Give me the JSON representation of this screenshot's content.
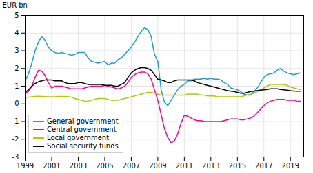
{
  "chart_data": {
    "type": "line",
    "ylabel": "EUR bn",
    "x": [
      1999.0,
      1999.25,
      1999.5,
      1999.75,
      2000.0,
      2000.25,
      2000.5,
      2000.75,
      2001.0,
      2001.25,
      2001.5,
      2001.75,
      2002.0,
      2002.25,
      2002.5,
      2002.75,
      2003.0,
      2003.25,
      2003.5,
      2003.75,
      2004.0,
      2004.25,
      2004.5,
      2004.75,
      2005.0,
      2005.25,
      2005.5,
      2005.75,
      2006.0,
      2006.25,
      2006.5,
      2006.75,
      2007.0,
      2007.25,
      2007.5,
      2007.75,
      2008.0,
      2008.25,
      2008.5,
      2008.75,
      2009.0,
      2009.25,
      2009.5,
      2009.75,
      2010.0,
      2010.25,
      2010.5,
      2010.75,
      2011.0,
      2011.25,
      2011.5,
      2011.75,
      2012.0,
      2012.25,
      2012.5,
      2012.75,
      2013.0,
      2013.25,
      2013.5,
      2013.75,
      2014.0,
      2014.25,
      2014.5,
      2014.75,
      2015.0,
      2015.25,
      2015.5,
      2015.75,
      2016.0,
      2016.25,
      2016.5,
      2016.75,
      2017.0,
      2017.25,
      2017.5,
      2017.75,
      2018.0,
      2018.25,
      2018.5,
      2018.75,
      2019.0,
      2019.25,
      2019.5,
      2019.75
    ],
    "series": [
      {
        "name": "General government",
        "color": "#1a9fcc",
        "values": [
          1.3,
          1.7,
          2.3,
          3.0,
          3.5,
          3.8,
          3.6,
          3.2,
          3.0,
          2.9,
          2.85,
          2.9,
          2.85,
          2.8,
          2.75,
          2.8,
          2.9,
          2.9,
          2.9,
          2.6,
          2.4,
          2.35,
          2.3,
          2.35,
          2.4,
          2.2,
          2.3,
          2.3,
          2.5,
          2.6,
          2.8,
          3.0,
          3.2,
          3.5,
          3.8,
          4.1,
          4.3,
          4.2,
          3.8,
          2.8,
          2.4,
          0.8,
          0.1,
          -0.1,
          0.2,
          0.5,
          0.8,
          1.0,
          1.1,
          1.3,
          1.3,
          1.4,
          1.4,
          1.4,
          1.45,
          1.4,
          1.45,
          1.4,
          1.4,
          1.35,
          1.2,
          1.1,
          0.9,
          0.85,
          0.8,
          0.7,
          0.55,
          0.5,
          0.5,
          0.7,
          0.9,
          1.2,
          1.5,
          1.65,
          1.7,
          1.75,
          1.9,
          2.0,
          1.85,
          1.75,
          1.7,
          1.65,
          1.7,
          1.75
        ]
      },
      {
        "name": "Central government",
        "color": "#ff0090",
        "values": [
          0.6,
          0.7,
          1.0,
          1.5,
          1.9,
          1.85,
          1.6,
          1.2,
          0.9,
          1.0,
          1.0,
          1.0,
          0.95,
          0.9,
          0.85,
          0.85,
          0.85,
          0.85,
          0.9,
          0.95,
          1.0,
          1.0,
          1.0,
          1.0,
          1.05,
          1.0,
          0.95,
          0.9,
          0.85,
          0.9,
          1.0,
          1.2,
          1.5,
          1.65,
          1.75,
          1.8,
          1.8,
          1.7,
          1.4,
          0.8,
          0.2,
          -0.6,
          -1.4,
          -1.9,
          -2.2,
          -2.1,
          -1.7,
          -1.1,
          -0.65,
          -0.7,
          -0.8,
          -0.9,
          -0.95,
          -0.95,
          -1.0,
          -1.0,
          -1.0,
          -1.0,
          -1.0,
          -1.0,
          -0.95,
          -0.9,
          -0.85,
          -0.85,
          -0.85,
          -0.9,
          -0.9,
          -0.85,
          -0.8,
          -0.7,
          -0.5,
          -0.3,
          -0.1,
          0.05,
          0.15,
          0.2,
          0.25,
          0.25,
          0.25,
          0.2,
          0.2,
          0.2,
          0.15,
          0.15
        ]
      },
      {
        "name": "Local government",
        "color": "#aacc00",
        "values": [
          0.35,
          0.38,
          0.4,
          0.42,
          0.43,
          0.42,
          0.41,
          0.4,
          0.4,
          0.4,
          0.42,
          0.42,
          0.42,
          0.4,
          0.38,
          0.3,
          0.25,
          0.2,
          0.15,
          0.15,
          0.2,
          0.25,
          0.3,
          0.3,
          0.3,
          0.25,
          0.2,
          0.2,
          0.2,
          0.25,
          0.3,
          0.35,
          0.4,
          0.45,
          0.5,
          0.55,
          0.6,
          0.65,
          0.65,
          0.6,
          0.55,
          0.5,
          0.5,
          0.5,
          0.5,
          0.5,
          0.5,
          0.5,
          0.5,
          0.55,
          0.55,
          0.55,
          0.55,
          0.5,
          0.5,
          0.45,
          0.45,
          0.45,
          0.4,
          0.4,
          0.4,
          0.4,
          0.4,
          0.4,
          0.4,
          0.4,
          0.45,
          0.5,
          0.55,
          0.6,
          0.7,
          0.8,
          0.9,
          1.0,
          1.1,
          1.1,
          1.1,
          1.1,
          1.1,
          1.05,
          0.95,
          0.9,
          0.85,
          0.82
        ]
      },
      {
        "name": "Social security funds",
        "color": "#000000",
        "values": [
          0.65,
          0.8,
          1.0,
          1.15,
          1.25,
          1.3,
          1.35,
          1.35,
          1.35,
          1.3,
          1.3,
          1.3,
          1.2,
          1.15,
          1.15,
          1.15,
          1.2,
          1.2,
          1.15,
          1.1,
          1.1,
          1.1,
          1.1,
          1.1,
          1.05,
          1.05,
          1.05,
          1.0,
          1.0,
          1.1,
          1.2,
          1.5,
          1.75,
          1.9,
          2.0,
          2.05,
          2.05,
          2.0,
          1.9,
          1.65,
          1.4,
          1.35,
          1.3,
          1.2,
          1.2,
          1.3,
          1.35,
          1.35,
          1.35,
          1.35,
          1.35,
          1.3,
          1.2,
          1.15,
          1.1,
          1.05,
          1.0,
          0.95,
          0.9,
          0.85,
          0.8,
          0.75,
          0.72,
          0.7,
          0.65,
          0.6,
          0.6,
          0.65,
          0.7,
          0.72,
          0.75,
          0.78,
          0.8,
          0.82,
          0.85,
          0.85,
          0.85,
          0.82,
          0.8,
          0.78,
          0.75,
          0.73,
          0.72,
          0.72
        ]
      }
    ],
    "xlim": [
      1999,
      2020.0
    ],
    "ylim": [
      -3,
      5
    ],
    "xticks": [
      1999,
      2001,
      2003,
      2005,
      2007,
      2009,
      2011,
      2013,
      2015,
      2017,
      2019
    ],
    "yticks": [
      -3,
      -2,
      -1,
      0,
      1,
      2,
      3,
      4,
      5
    ],
    "grid": true,
    "legend": "lower left"
  }
}
